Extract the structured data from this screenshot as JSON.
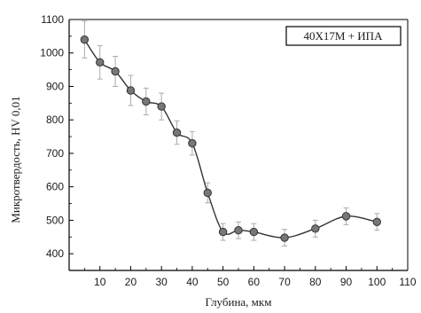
{
  "chart_data": {
    "type": "scatter",
    "title": "",
    "xlabel": "Глубина, мкм",
    "ylabel": "Микротвердость, HV 0,01",
    "xlim": [
      0,
      110
    ],
    "ylim": [
      350,
      1100
    ],
    "xticks": [
      10,
      20,
      30,
      40,
      50,
      60,
      70,
      80,
      90,
      100,
      110
    ],
    "yticks": [
      400,
      500,
      600,
      700,
      800,
      900,
      1000,
      1100
    ],
    "grid": false,
    "legend_box": "40Х17М + ИПА",
    "legend_placement": "top-right",
    "marker_color": "#777777",
    "line_color": "#333333",
    "errorbar_color": "#aaaaaa",
    "series": [
      {
        "x": [
          5,
          10,
          15,
          20,
          25,
          30,
          35,
          40,
          45,
          50,
          55,
          60,
          70,
          80,
          90,
          100
        ],
        "y": [
          1040,
          972,
          945,
          888,
          855,
          840,
          762,
          730,
          582,
          465,
          470,
          465,
          448,
          475,
          512,
          495
        ],
        "error": [
          55,
          50,
          45,
          45,
          40,
          40,
          35,
          35,
          30,
          25,
          25,
          25,
          25,
          25,
          25,
          25
        ]
      }
    ]
  }
}
